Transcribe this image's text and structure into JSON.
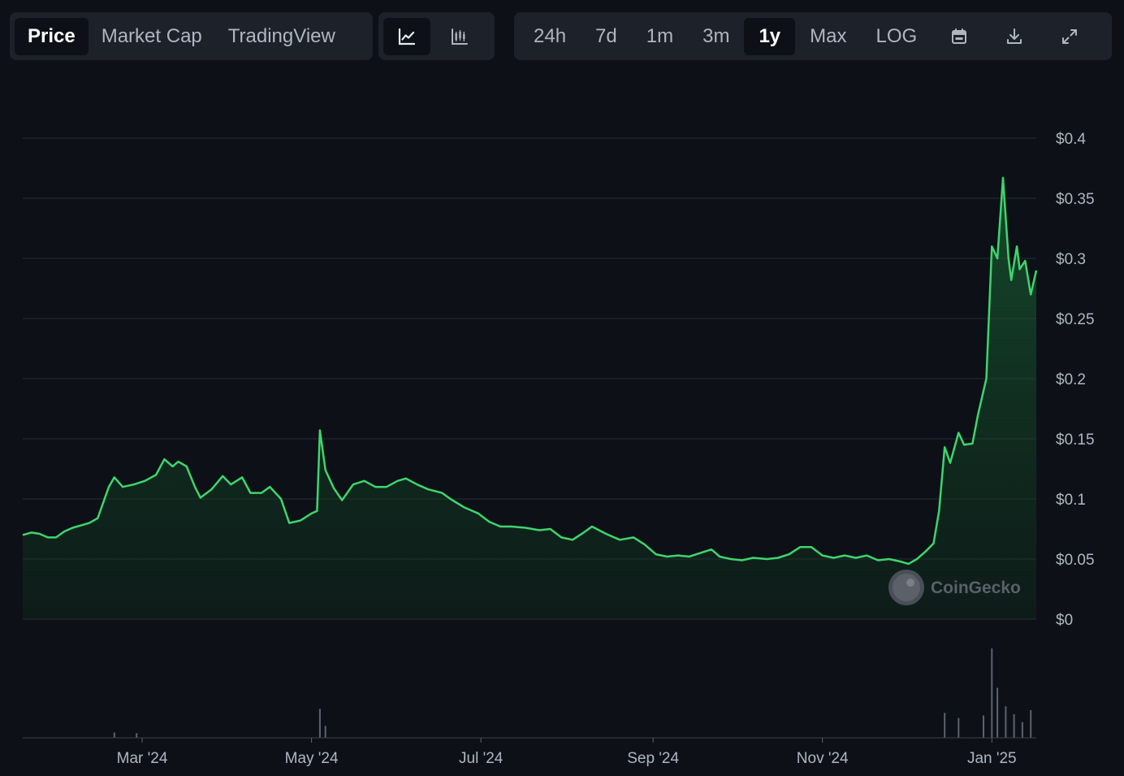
{
  "toolbar": {
    "view_tabs": [
      "Price",
      "Market Cap",
      "TradingView"
    ],
    "active_view": "Price",
    "chart_types": [
      {
        "name": "line-chart-icon",
        "active": true
      },
      {
        "name": "candlestick-chart-icon",
        "active": false
      }
    ],
    "ranges": [
      "24h",
      "7d",
      "1m",
      "3m",
      "1y",
      "Max",
      "LOG"
    ],
    "active_range": "1y",
    "tools": [
      "calendar-icon",
      "download-icon",
      "fullscreen-icon"
    ]
  },
  "colors": {
    "background": "#0d1117",
    "line": "#3ed56d",
    "grid": "#262b33",
    "volume": "#5b6270",
    "toolbar": "#1c212a"
  },
  "watermark": "CoinGecko",
  "chart_data": {
    "type": "area",
    "title": "",
    "xlabel": "",
    "ylabel": "",
    "x_tick_labels": [
      "Mar '24",
      "May '24",
      "Jul '24",
      "Sep '24",
      "Nov '24",
      "Jan '25"
    ],
    "x_ticks": [
      "2024-03-01",
      "2024-05-01",
      "2024-07-01",
      "2024-09-01",
      "2024-11-01",
      "2025-01-01"
    ],
    "x_range": [
      "2024-01-18",
      "2025-01-17"
    ],
    "y_tick_labels": [
      "$0",
      "$0.05",
      "$0.1",
      "$0.15",
      "$0.2",
      "$0.25",
      "$0.3",
      "$0.35",
      "$0.4"
    ],
    "y_ticks": [
      0,
      0.05,
      0.1,
      0.15,
      0.2,
      0.25,
      0.3,
      0.35,
      0.4
    ],
    "ylim": [
      0,
      0.4
    ],
    "grid": true,
    "axis_position": "right",
    "series": [
      {
        "values": [
          [
            "2024-01-18",
            0.07
          ],
          [
            "2024-01-21",
            0.072
          ],
          [
            "2024-01-24",
            0.071
          ],
          [
            "2024-01-27",
            0.068
          ],
          [
            "2024-01-30",
            0.068
          ],
          [
            "2024-02-02",
            0.073
          ],
          [
            "2024-02-05",
            0.076
          ],
          [
            "2024-02-08",
            0.078
          ],
          [
            "2024-02-11",
            0.08
          ],
          [
            "2024-02-14",
            0.084
          ],
          [
            "2024-02-18",
            0.11
          ],
          [
            "2024-02-20",
            0.118
          ],
          [
            "2024-02-23",
            0.11
          ],
          [
            "2024-02-27",
            0.112
          ],
          [
            "2024-03-02",
            0.115
          ],
          [
            "2024-03-06",
            0.12
          ],
          [
            "2024-03-09",
            0.133
          ],
          [
            "2024-03-12",
            0.127
          ],
          [
            "2024-03-14",
            0.131
          ],
          [
            "2024-03-17",
            0.127
          ],
          [
            "2024-03-20",
            0.11
          ],
          [
            "2024-03-22",
            0.101
          ],
          [
            "2024-03-26",
            0.108
          ],
          [
            "2024-03-30",
            0.119
          ],
          [
            "2024-04-02",
            0.112
          ],
          [
            "2024-04-06",
            0.118
          ],
          [
            "2024-04-09",
            0.105
          ],
          [
            "2024-04-13",
            0.105
          ],
          [
            "2024-04-16",
            0.11
          ],
          [
            "2024-04-20",
            0.1
          ],
          [
            "2024-04-23",
            0.08
          ],
          [
            "2024-04-27",
            0.082
          ],
          [
            "2024-05-01",
            0.088
          ],
          [
            "2024-05-03",
            0.09
          ],
          [
            "2024-05-04",
            0.157
          ],
          [
            "2024-05-06",
            0.124
          ],
          [
            "2024-05-09",
            0.109
          ],
          [
            "2024-05-12",
            0.099
          ],
          [
            "2024-05-16",
            0.112
          ],
          [
            "2024-05-20",
            0.115
          ],
          [
            "2024-05-24",
            0.11
          ],
          [
            "2024-05-28",
            0.11
          ],
          [
            "2024-06-01",
            0.115
          ],
          [
            "2024-06-04",
            0.117
          ],
          [
            "2024-06-08",
            0.112
          ],
          [
            "2024-06-12",
            0.108
          ],
          [
            "2024-06-17",
            0.105
          ],
          [
            "2024-06-20",
            0.1
          ],
          [
            "2024-06-25",
            0.093
          ],
          [
            "2024-06-30",
            0.088
          ],
          [
            "2024-07-04",
            0.081
          ],
          [
            "2024-07-08",
            0.077
          ],
          [
            "2024-07-12",
            0.077
          ],
          [
            "2024-07-17",
            0.076
          ],
          [
            "2024-07-22",
            0.074
          ],
          [
            "2024-07-26",
            0.075
          ],
          [
            "2024-07-30",
            0.068
          ],
          [
            "2024-08-03",
            0.066
          ],
          [
            "2024-08-07",
            0.072
          ],
          [
            "2024-08-10",
            0.077
          ],
          [
            "2024-08-15",
            0.071
          ],
          [
            "2024-08-20",
            0.066
          ],
          [
            "2024-08-25",
            0.068
          ],
          [
            "2024-08-29",
            0.062
          ],
          [
            "2024-09-02",
            0.054
          ],
          [
            "2024-09-06",
            0.052
          ],
          [
            "2024-09-10",
            0.053
          ],
          [
            "2024-09-14",
            0.052
          ],
          [
            "2024-09-18",
            0.055
          ],
          [
            "2024-09-22",
            0.058
          ],
          [
            "2024-09-25",
            0.052
          ],
          [
            "2024-09-29",
            0.05
          ],
          [
            "2024-10-03",
            0.049
          ],
          [
            "2024-10-07",
            0.051
          ],
          [
            "2024-10-12",
            0.05
          ],
          [
            "2024-10-16",
            0.051
          ],
          [
            "2024-10-20",
            0.054
          ],
          [
            "2024-10-24",
            0.06
          ],
          [
            "2024-10-28",
            0.06
          ],
          [
            "2024-11-01",
            0.053
          ],
          [
            "2024-11-05",
            0.051
          ],
          [
            "2024-11-09",
            0.053
          ],
          [
            "2024-11-13",
            0.051
          ],
          [
            "2024-11-17",
            0.053
          ],
          [
            "2024-11-21",
            0.049
          ],
          [
            "2024-11-25",
            0.05
          ],
          [
            "2024-11-29",
            0.048
          ],
          [
            "2024-12-02",
            0.046
          ],
          [
            "2024-12-05",
            0.05
          ],
          [
            "2024-12-08",
            0.056
          ],
          [
            "2024-12-11",
            0.063
          ],
          [
            "2024-12-13",
            0.09
          ],
          [
            "2024-12-15",
            0.143
          ],
          [
            "2024-12-17",
            0.13
          ],
          [
            "2024-12-20",
            0.155
          ],
          [
            "2024-12-22",
            0.145
          ],
          [
            "2024-12-25",
            0.146
          ],
          [
            "2024-12-27",
            0.17
          ],
          [
            "2024-12-30",
            0.2
          ],
          [
            "2025-01-01",
            0.31
          ],
          [
            "2025-01-03",
            0.3
          ],
          [
            "2025-01-05",
            0.367
          ],
          [
            "2025-01-07",
            0.3
          ],
          [
            "2025-01-08",
            0.282
          ],
          [
            "2025-01-10",
            0.31
          ],
          [
            "2025-01-11",
            0.291
          ],
          [
            "2025-01-13",
            0.298
          ],
          [
            "2025-01-15",
            0.27
          ],
          [
            "2025-01-17",
            0.29
          ]
        ]
      }
    ],
    "volume": {
      "values": [
        [
          "2024-02-20",
          0.4
        ],
        [
          "2024-02-28",
          0.35
        ],
        [
          "2024-05-04",
          2.2
        ],
        [
          "2024-05-06",
          0.9
        ],
        [
          "2024-12-15",
          1.9
        ],
        [
          "2024-12-20",
          1.5
        ],
        [
          "2024-12-29",
          1.7
        ],
        [
          "2025-01-01",
          6.8
        ],
        [
          "2025-01-03",
          3.8
        ],
        [
          "2025-01-06",
          2.4
        ],
        [
          "2025-01-09",
          1.8
        ],
        [
          "2025-01-12",
          1.2
        ],
        [
          "2025-01-15",
          2.1
        ]
      ]
    }
  }
}
